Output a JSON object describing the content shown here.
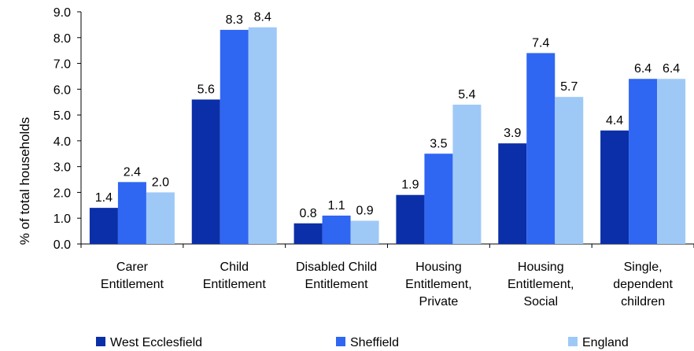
{
  "chart_data": {
    "type": "bar",
    "title": "",
    "xlabel": "",
    "ylabel": "% of total households",
    "ylim": [
      0,
      9
    ],
    "yticks": [
      "0.0",
      "1.0",
      "2.0",
      "3.0",
      "4.0",
      "5.0",
      "6.0",
      "7.0",
      "8.0",
      "9.0"
    ],
    "grid": false,
    "legend_position": "bottom",
    "categories": [
      [
        "Carer",
        "Entitlement"
      ],
      [
        "Child",
        "Entitlement"
      ],
      [
        "Disabled Child",
        "Entitlement"
      ],
      [
        "Housing",
        "Entitlement,",
        "Private"
      ],
      [
        "Housing",
        "Entitlement,",
        "Social"
      ],
      [
        "Single,",
        "dependent",
        "children"
      ]
    ],
    "series": [
      {
        "name": "West Ecclesfield",
        "color": "#0a2fa8",
        "values": [
          1.4,
          5.6,
          0.8,
          1.9,
          3.9,
          4.4
        ]
      },
      {
        "name": "Sheffield",
        "color": "#2f66f2",
        "values": [
          2.4,
          8.3,
          1.1,
          3.5,
          7.4,
          6.4
        ]
      },
      {
        "name": "England",
        "color": "#9ec9f7",
        "values": [
          2.0,
          8.4,
          0.9,
          5.4,
          5.7,
          6.4
        ]
      }
    ]
  }
}
